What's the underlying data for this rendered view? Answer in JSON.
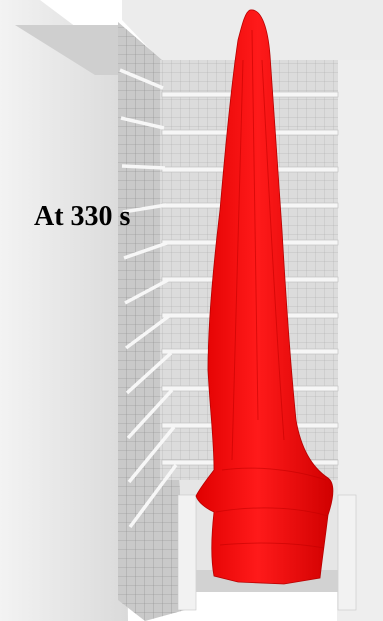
{
  "annotation": {
    "time_label": "At 330 s"
  },
  "colors": {
    "background": "#ffffff",
    "wall_light": "#e9e9e9",
    "wall_mid": "#d6d6d6",
    "wall_dark": "#9a9a9a",
    "grid_line": "#7f7f7f",
    "slab": "#f4f4f4",
    "smoke_plume": "#ff0000",
    "smoke_dark": "#c80000",
    "text": "#000000"
  }
}
